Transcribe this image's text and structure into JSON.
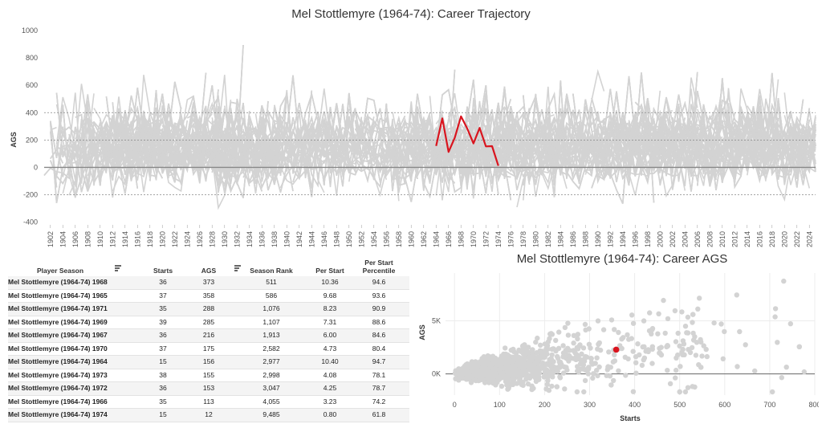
{
  "chart_data": [
    {
      "type": "line",
      "title": "Mel Stottlemyre (1964-74): Career Trajectory",
      "ylabel": "AGS",
      "xlabel": "",
      "ylim": [
        -420,
        1000
      ],
      "xlim": [
        1901,
        2025
      ],
      "y_ticks": [
        1000,
        800,
        600,
        400,
        200,
        0,
        -200,
        -400
      ],
      "x_ticks": [
        1902,
        1904,
        1906,
        1908,
        1910,
        1912,
        1914,
        1916,
        1918,
        1920,
        1922,
        1924,
        1926,
        1928,
        1930,
        1932,
        1934,
        1936,
        1938,
        1940,
        1942,
        1944,
        1946,
        1948,
        1950,
        1952,
        1954,
        1956,
        1958,
        1960,
        1962,
        1964,
        1966,
        1968,
        1970,
        1972,
        1974,
        1976,
        1978,
        1980,
        1982,
        1984,
        1986,
        1988,
        1990,
        1992,
        1994,
        1996,
        1998,
        2000,
        2002,
        2004,
        2006,
        2008,
        2010,
        2012,
        2014,
        2016,
        2018,
        2020,
        2022,
        2024
      ],
      "reference_lines": [
        400,
        200,
        -200
      ],
      "highlight_series": {
        "name": "Mel Stottlemyre (1964-74)",
        "color": "#d9141e",
        "x": [
          1964,
          1965,
          1966,
          1967,
          1968,
          1969,
          1970,
          1971,
          1972,
          1973,
          1974
        ],
        "y": [
          156,
          358,
          113,
          216,
          373,
          285,
          175,
          288,
          153,
          155,
          12
        ]
      },
      "background_color": "#d3d3d3"
    },
    {
      "type": "table",
      "columns": [
        "Player Season",
        "Starts",
        "AGS",
        "Season Rank",
        "Per Start",
        "Per Start Percentile"
      ],
      "rows": [
        [
          "Mel Stottlemyre (1964-74) 1968",
          "36",
          "373",
          "511",
          "10.36",
          "94.6"
        ],
        [
          "Mel Stottlemyre (1964-74) 1965",
          "37",
          "358",
          "586",
          "9.68",
          "93.6"
        ],
        [
          "Mel Stottlemyre (1964-74) 1971",
          "35",
          "288",
          "1,076",
          "8.23",
          "90.9"
        ],
        [
          "Mel Stottlemyre (1964-74) 1969",
          "39",
          "285",
          "1,107",
          "7.31",
          "88.6"
        ],
        [
          "Mel Stottlemyre (1964-74) 1967",
          "36",
          "216",
          "1,913",
          "6.00",
          "84.6"
        ],
        [
          "Mel Stottlemyre (1964-74) 1970",
          "37",
          "175",
          "2,582",
          "4.73",
          "80.4"
        ],
        [
          "Mel Stottlemyre (1964-74) 1964",
          "15",
          "156",
          "2,977",
          "10.40",
          "94.7"
        ],
        [
          "Mel Stottlemyre (1964-74) 1973",
          "38",
          "155",
          "2,998",
          "4.08",
          "78.1"
        ],
        [
          "Mel Stottlemyre (1964-74) 1972",
          "36",
          "153",
          "3,047",
          "4.25",
          "78.7"
        ],
        [
          "Mel Stottlemyre (1964-74) 1966",
          "35",
          "113",
          "4,055",
          "3.23",
          "74.2"
        ],
        [
          "Mel Stottlemyre (1964-74) 1974",
          "15",
          "12",
          "9,485",
          "0.80",
          "61.8"
        ]
      ]
    },
    {
      "type": "scatter",
      "title": "Mel Stottlemyre (1964-74): Career AGS",
      "xlabel": "Starts",
      "ylabel": "AGS",
      "xlim": [
        -20,
        800
      ],
      "ylim": [
        -2000,
        9500
      ],
      "x_ticks": [
        0,
        100,
        200,
        300,
        400,
        500,
        600,
        700,
        800
      ],
      "y_ticks": [
        {
          "value": 0,
          "label": "0K"
        },
        {
          "value": 5000,
          "label": "5K"
        }
      ],
      "highlight_point": {
        "name": "Mel Stottlemyre (1964-74)",
        "x": 359,
        "y": 2284,
        "color": "#d9141e"
      },
      "background_color": "#d3d3d3"
    }
  ]
}
